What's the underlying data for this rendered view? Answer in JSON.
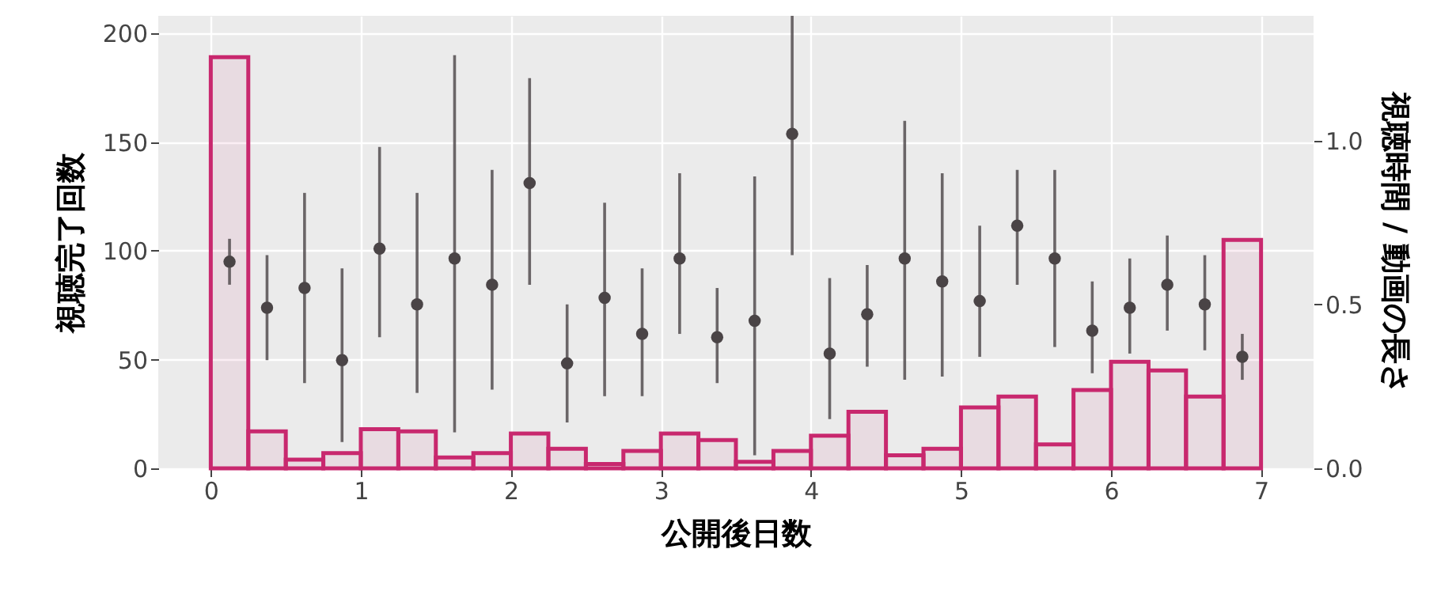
{
  "chart_data": {
    "type": "histogram",
    "xlabel": "公開後日数",
    "ylabel": "視聴完了回数",
    "y2label": "視聴時間 / 動画の長さ",
    "bins": [
      0,
      0.25,
      0.5,
      0.75,
      1,
      1.25,
      1.5,
      1.75,
      2,
      2.25,
      2.5,
      2.75,
      3,
      3.25,
      3.5,
      3.75,
      4,
      4.25,
      4.5,
      4.75,
      5,
      5.25,
      5.5,
      5.75,
      6,
      6.25,
      6.5,
      6.75,
      7
    ],
    "series": [
      {
        "type": "histogram",
        "color": "#c8286e",
        "values": [
          189,
          17,
          4,
          7,
          18,
          17,
          5,
          7,
          16,
          9,
          2,
          8,
          16,
          13,
          3,
          8,
          15,
          26,
          6,
          9,
          28,
          33,
          11,
          36,
          49,
          45,
          33,
          105
        ]
      },
      {
        "type": "scatter",
        "axis": "y2",
        "color": "#4a4446",
        "x": [
          0.125,
          0.375,
          0.625,
          0.875,
          1.125,
          1.375,
          1.625,
          1.875,
          2.125,
          2.375,
          2.625,
          2.875,
          3.125,
          3.375,
          3.625,
          3.875,
          4.125,
          4.375,
          4.625,
          4.875,
          5.125,
          5.375,
          5.625,
          5.875,
          6.125,
          6.375,
          6.625,
          6.875
        ],
        "values": [
          0.63,
          0.49,
          0.55,
          0.33,
          0.67,
          0.5,
          0.64,
          0.56,
          0.87,
          0.32,
          0.52,
          0.41,
          0.64,
          0.4,
          0.45,
          1.02,
          0.35,
          0.47,
          0.64,
          0.57,
          0.51,
          0.74,
          0.64,
          0.42,
          0.49,
          0.56,
          0.5,
          0.34
        ],
        "errors": [
          [
            0.56,
            0.7
          ],
          [
            0.33,
            0.65
          ],
          [
            0.26,
            0.84
          ],
          [
            0.08,
            0.61
          ],
          [
            0.4,
            0.98
          ],
          [
            0.23,
            0.84
          ],
          [
            0.11,
            1.26
          ],
          [
            0.24,
            0.91
          ],
          [
            0.56,
            1.19
          ],
          [
            0.14,
            0.5
          ],
          [
            0.22,
            0.81
          ],
          [
            0.22,
            0.61
          ],
          [
            0.41,
            0.9
          ],
          [
            0.26,
            0.55
          ],
          [
            0.04,
            0.89
          ],
          [
            0.65,
            1.38
          ],
          [
            0.15,
            0.58
          ],
          [
            0.31,
            0.62
          ],
          [
            0.27,
            1.06
          ],
          [
            0.28,
            0.9
          ],
          [
            0.34,
            0.74
          ],
          [
            0.56,
            0.91
          ],
          [
            0.37,
            0.91
          ],
          [
            0.29,
            0.57
          ],
          [
            0.35,
            0.64
          ],
          [
            0.42,
            0.71
          ],
          [
            0.36,
            0.65
          ],
          [
            0.27,
            0.41
          ]
        ]
      }
    ],
    "xlim": [
      -0.35,
      7.35
    ],
    "xticks": [
      0,
      1,
      2,
      3,
      4,
      5,
      6,
      7
    ],
    "ylim": [
      0,
      208
    ],
    "yticks": [
      0,
      50,
      100,
      150,
      200
    ],
    "y2lim": [
      0,
      1.38
    ],
    "y2ticks": [
      {
        "value": 0,
        "label": "0.0"
      },
      {
        "value": 0.5,
        "label": "0.5"
      },
      {
        "value": 1,
        "label": "1.0"
      }
    ],
    "grid": true,
    "marker": "circle"
  }
}
